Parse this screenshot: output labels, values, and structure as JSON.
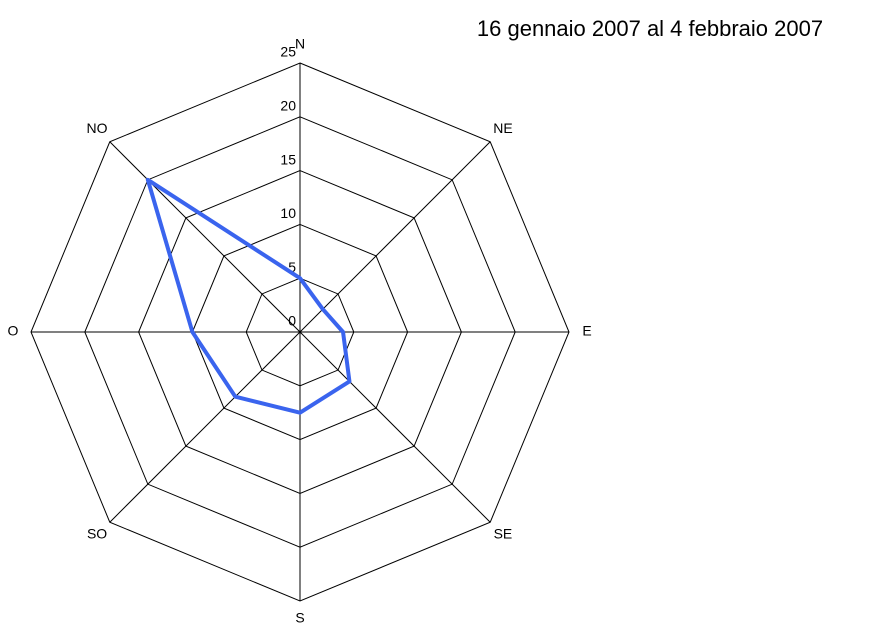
{
  "chart_data": {
    "type": "radar",
    "title": "16 gennaio 2007 al 4 febbraio 2007",
    "categories": [
      "N",
      "NE",
      "E",
      "SE",
      "S",
      "SO",
      "O",
      "NO"
    ],
    "series": [
      {
        "name": null,
        "color": "#3a64ee",
        "values": [
          5,
          3,
          4,
          6.5,
          7.5,
          8.5,
          10,
          20
        ]
      }
    ],
    "rlim": [
      0,
      25
    ],
    "rticks": [
      0,
      5,
      10,
      15,
      20,
      25
    ],
    "grid": true
  }
}
